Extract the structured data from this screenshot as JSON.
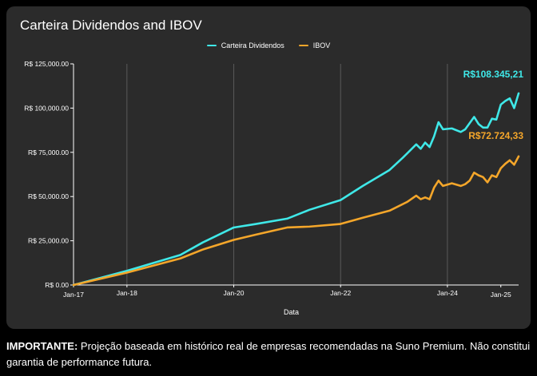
{
  "chart_data": {
    "type": "line",
    "title": "Carteira Dividendos and IBOV",
    "xlabel": "Data",
    "ylabel": "",
    "x_ticks": [
      "Jan-17",
      "Jan-18",
      "Jan-20",
      "Jan-22",
      "Jan-24",
      "Jan-25"
    ],
    "y_ticks": [
      "R$ 0.00",
      "R$ 25,000.00",
      "R$ 50,000.00",
      "R$ 75,000.00",
      "R$ 100,000.00",
      "R$ 125,000.00"
    ],
    "ylim": [
      0,
      125000
    ],
    "xlim": [
      "2017-01",
      "2025-01"
    ],
    "grid": "vertical",
    "legend_position": "top-center",
    "series": [
      {
        "name": "Carteira Dividendos",
        "color": "#3fe8e8",
        "end_label": "R$108.345,21",
        "points": [
          [
            "2017-01",
            0
          ],
          [
            "2018-01",
            8000
          ],
          [
            "2019-01",
            17000
          ],
          [
            "2019-06",
            24000
          ],
          [
            "2020-01",
            32500
          ],
          [
            "2020-06",
            34500
          ],
          [
            "2021-01",
            37500
          ],
          [
            "2021-06",
            42500
          ],
          [
            "2022-01",
            48000
          ],
          [
            "2022-06",
            56000
          ],
          [
            "2022-12",
            65000
          ],
          [
            "2023-03",
            72000
          ],
          [
            "2023-06",
            79500
          ],
          [
            "2023-07",
            77000
          ],
          [
            "2023-08",
            80500
          ],
          [
            "2023-09",
            78000
          ],
          [
            "2023-10",
            84000
          ],
          [
            "2023-11",
            92000
          ],
          [
            "2023-12",
            88000
          ],
          [
            "2024-02",
            88500
          ],
          [
            "2024-04",
            86500
          ],
          [
            "2024-05",
            88000
          ],
          [
            "2024-07",
            95000
          ],
          [
            "2024-08",
            91000
          ],
          [
            "2024-09",
            89000
          ],
          [
            "2024-10",
            89000
          ],
          [
            "2024-11",
            94000
          ],
          [
            "2024-12",
            93500
          ],
          [
            "2025-01",
            102000
          ],
          [
            "2025-02",
            104000
          ],
          [
            "2025-03",
            105500
          ],
          [
            "2025-04",
            100000
          ],
          [
            "2025-05",
            108345.21
          ]
        ]
      },
      {
        "name": "IBOV",
        "color": "#f4a62a",
        "end_label": "R$72.724,33",
        "points": [
          [
            "2017-01",
            0
          ],
          [
            "2018-01",
            7000
          ],
          [
            "2019-01",
            15000
          ],
          [
            "2019-06",
            20000
          ],
          [
            "2020-01",
            25500
          ],
          [
            "2020-06",
            28500
          ],
          [
            "2021-01",
            32500
          ],
          [
            "2021-06",
            33000
          ],
          [
            "2022-01",
            34500
          ],
          [
            "2022-06",
            38000
          ],
          [
            "2022-12",
            42000
          ],
          [
            "2023-04",
            47000
          ],
          [
            "2023-06",
            50500
          ],
          [
            "2023-07",
            48500
          ],
          [
            "2023-08",
            49500
          ],
          [
            "2023-09",
            48500
          ],
          [
            "2023-10",
            55000
          ],
          [
            "2023-11",
            59000
          ],
          [
            "2023-12",
            56000
          ],
          [
            "2024-02",
            57500
          ],
          [
            "2024-04",
            56000
          ],
          [
            "2024-05",
            57000
          ],
          [
            "2024-06",
            59000
          ],
          [
            "2024-07",
            63500
          ],
          [
            "2024-08",
            62000
          ],
          [
            "2024-09",
            61000
          ],
          [
            "2024-10",
            58000
          ],
          [
            "2024-11",
            62000
          ],
          [
            "2024-12",
            61000
          ],
          [
            "2025-01",
            66000
          ],
          [
            "2025-02",
            68500
          ],
          [
            "2025-03",
            70500
          ],
          [
            "2025-04",
            68000
          ],
          [
            "2025-05",
            72724.33
          ]
        ]
      }
    ]
  },
  "disclaimer": {
    "bold": "IMPORTANTE:",
    "text": " Projeção baseada em histórico real de empresas recomendadas na Suno Premium. Não constitui garantia de performance futura."
  }
}
